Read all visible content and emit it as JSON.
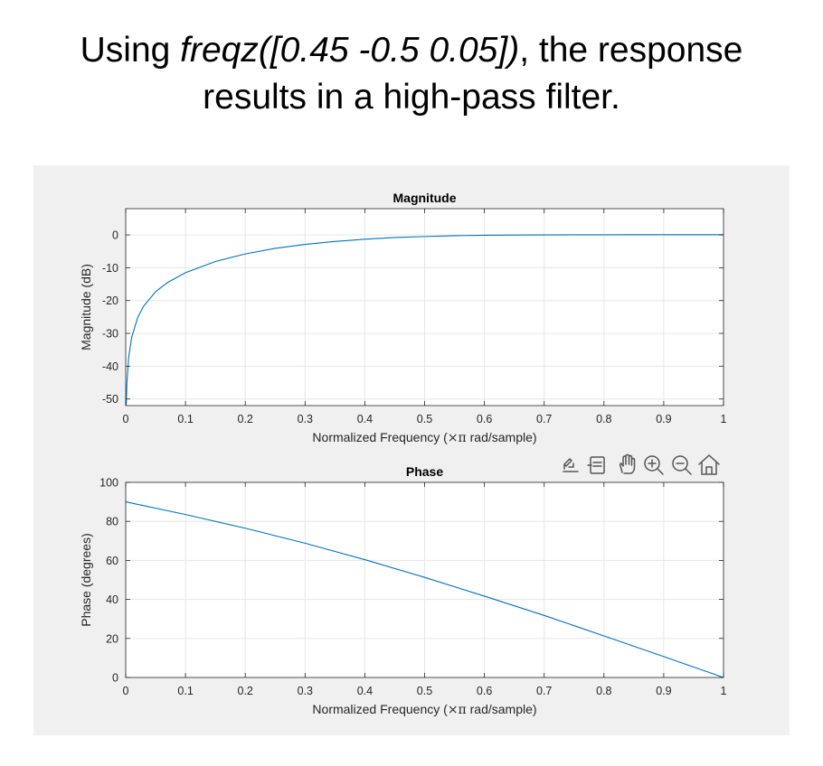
{
  "slide": {
    "title_prefix": "Using ",
    "title_code": "freqz([0.45 -0.5 0.05])",
    "title_suffix_line1": ", the response",
    "title_line2": "results in a high-pass filter."
  },
  "toolbar": {
    "items": [
      "export-icon",
      "brush-icon",
      "pan-icon",
      "zoom-in-icon",
      "zoom-out-icon",
      "home-icon"
    ]
  },
  "colors": {
    "line": "#0072BD",
    "grid": "#e6e6e6",
    "axes_bg": "#ffffff",
    "figure_bg": "#f0f0f0"
  },
  "chart_data": [
    {
      "type": "line",
      "title": "Magnitude",
      "xlabel_prefix": "Normalized Frequency  (",
      "xlabel_symbol": "×π",
      "xlabel_suffix": " rad/sample)",
      "ylabel": "Magnitude (dB)",
      "xlim": [
        0,
        1
      ],
      "ylim": [
        -52,
        8
      ],
      "xticks": [
        0,
        0.1,
        0.2,
        0.3,
        0.4,
        0.5,
        0.6,
        0.7,
        0.8,
        0.9,
        1
      ],
      "xtick_labels": [
        "0",
        "0.1",
        "0.2",
        "0.3",
        "0.4",
        "0.5",
        "0.6",
        "0.7",
        "0.8",
        "0.9",
        "1"
      ],
      "yticks": [
        -50,
        -40,
        -30,
        -20,
        -10,
        0
      ],
      "ytick_labels": [
        "-50",
        "-40",
        "-30",
        "-20",
        "-10",
        "0"
      ],
      "grid": true,
      "x": [
        0,
        0.001,
        0.002,
        0.005,
        0.01,
        0.02,
        0.03,
        0.05,
        0.07,
        0.1,
        0.15,
        0.2,
        0.25,
        0.3,
        0.35,
        0.4,
        0.45,
        0.5,
        0.55,
        0.6,
        0.65,
        0.7,
        0.75,
        0.8,
        0.85,
        0.9,
        0.95,
        1
      ],
      "y": [
        -52,
        -51.2,
        -45.2,
        -37.2,
        -31.2,
        -25.2,
        -21.7,
        -17.3,
        -14.5,
        -11.5,
        -8.1,
        -5.8,
        -4.1,
        -2.9,
        -2.0,
        -1.3,
        -0.8,
        -0.5,
        -0.25,
        -0.1,
        -0.03,
        0,
        0.03,
        0.05,
        0.06,
        0.06,
        0.06,
        0.06
      ]
    },
    {
      "type": "line",
      "title": "Phase",
      "xlabel_prefix": "Normalized Frequency  (",
      "xlabel_symbol": "×π",
      "xlabel_suffix": " rad/sample)",
      "ylabel": "Phase (degrees)",
      "xlim": [
        0,
        1
      ],
      "ylim": [
        0,
        100
      ],
      "xticks": [
        0,
        0.1,
        0.2,
        0.3,
        0.4,
        0.5,
        0.6,
        0.7,
        0.8,
        0.9,
        1
      ],
      "xtick_labels": [
        "0",
        "0.1",
        "0.2",
        "0.3",
        "0.4",
        "0.5",
        "0.6",
        "0.7",
        "0.8",
        "0.9",
        "1"
      ],
      "yticks": [
        0,
        20,
        40,
        60,
        80,
        100
      ],
      "ytick_labels": [
        "0",
        "20",
        "40",
        "60",
        "80",
        "100"
      ],
      "grid": true,
      "x": [
        0,
        0.1,
        0.2,
        0.3,
        0.4,
        0.5,
        0.6,
        0.7,
        0.8,
        0.9,
        1
      ],
      "y": [
        90,
        83.5,
        76.5,
        68.8,
        60.4,
        51.3,
        41.7,
        31.8,
        21.3,
        10.7,
        0
      ]
    }
  ]
}
